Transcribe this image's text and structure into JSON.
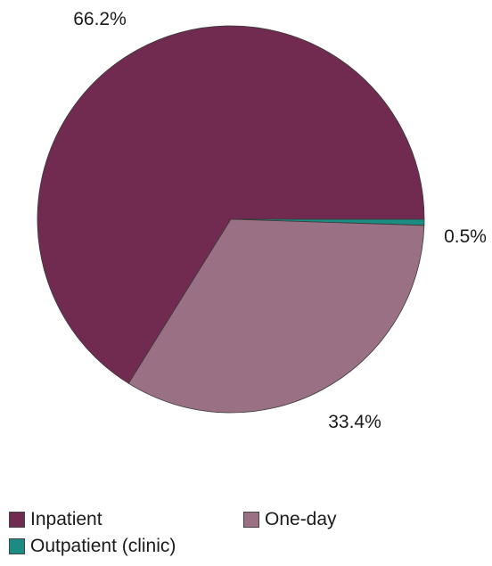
{
  "chart_data": {
    "type": "pie",
    "slices": [
      {
        "name": "Inpatient",
        "value": 66.2,
        "label": "66.2%",
        "color": "#722B50"
      },
      {
        "name": "Outpatient (clinic)",
        "value": 0.5,
        "label": "0.5%",
        "color": "#1B8C84"
      },
      {
        "name": "One-day",
        "value": 33.4,
        "label": "33.4%",
        "color": "#9A7085"
      }
    ],
    "legend": {
      "placement": "bottom",
      "entries": [
        "Inpatient",
        "One-day",
        "Outpatient (clinic)"
      ]
    }
  }
}
